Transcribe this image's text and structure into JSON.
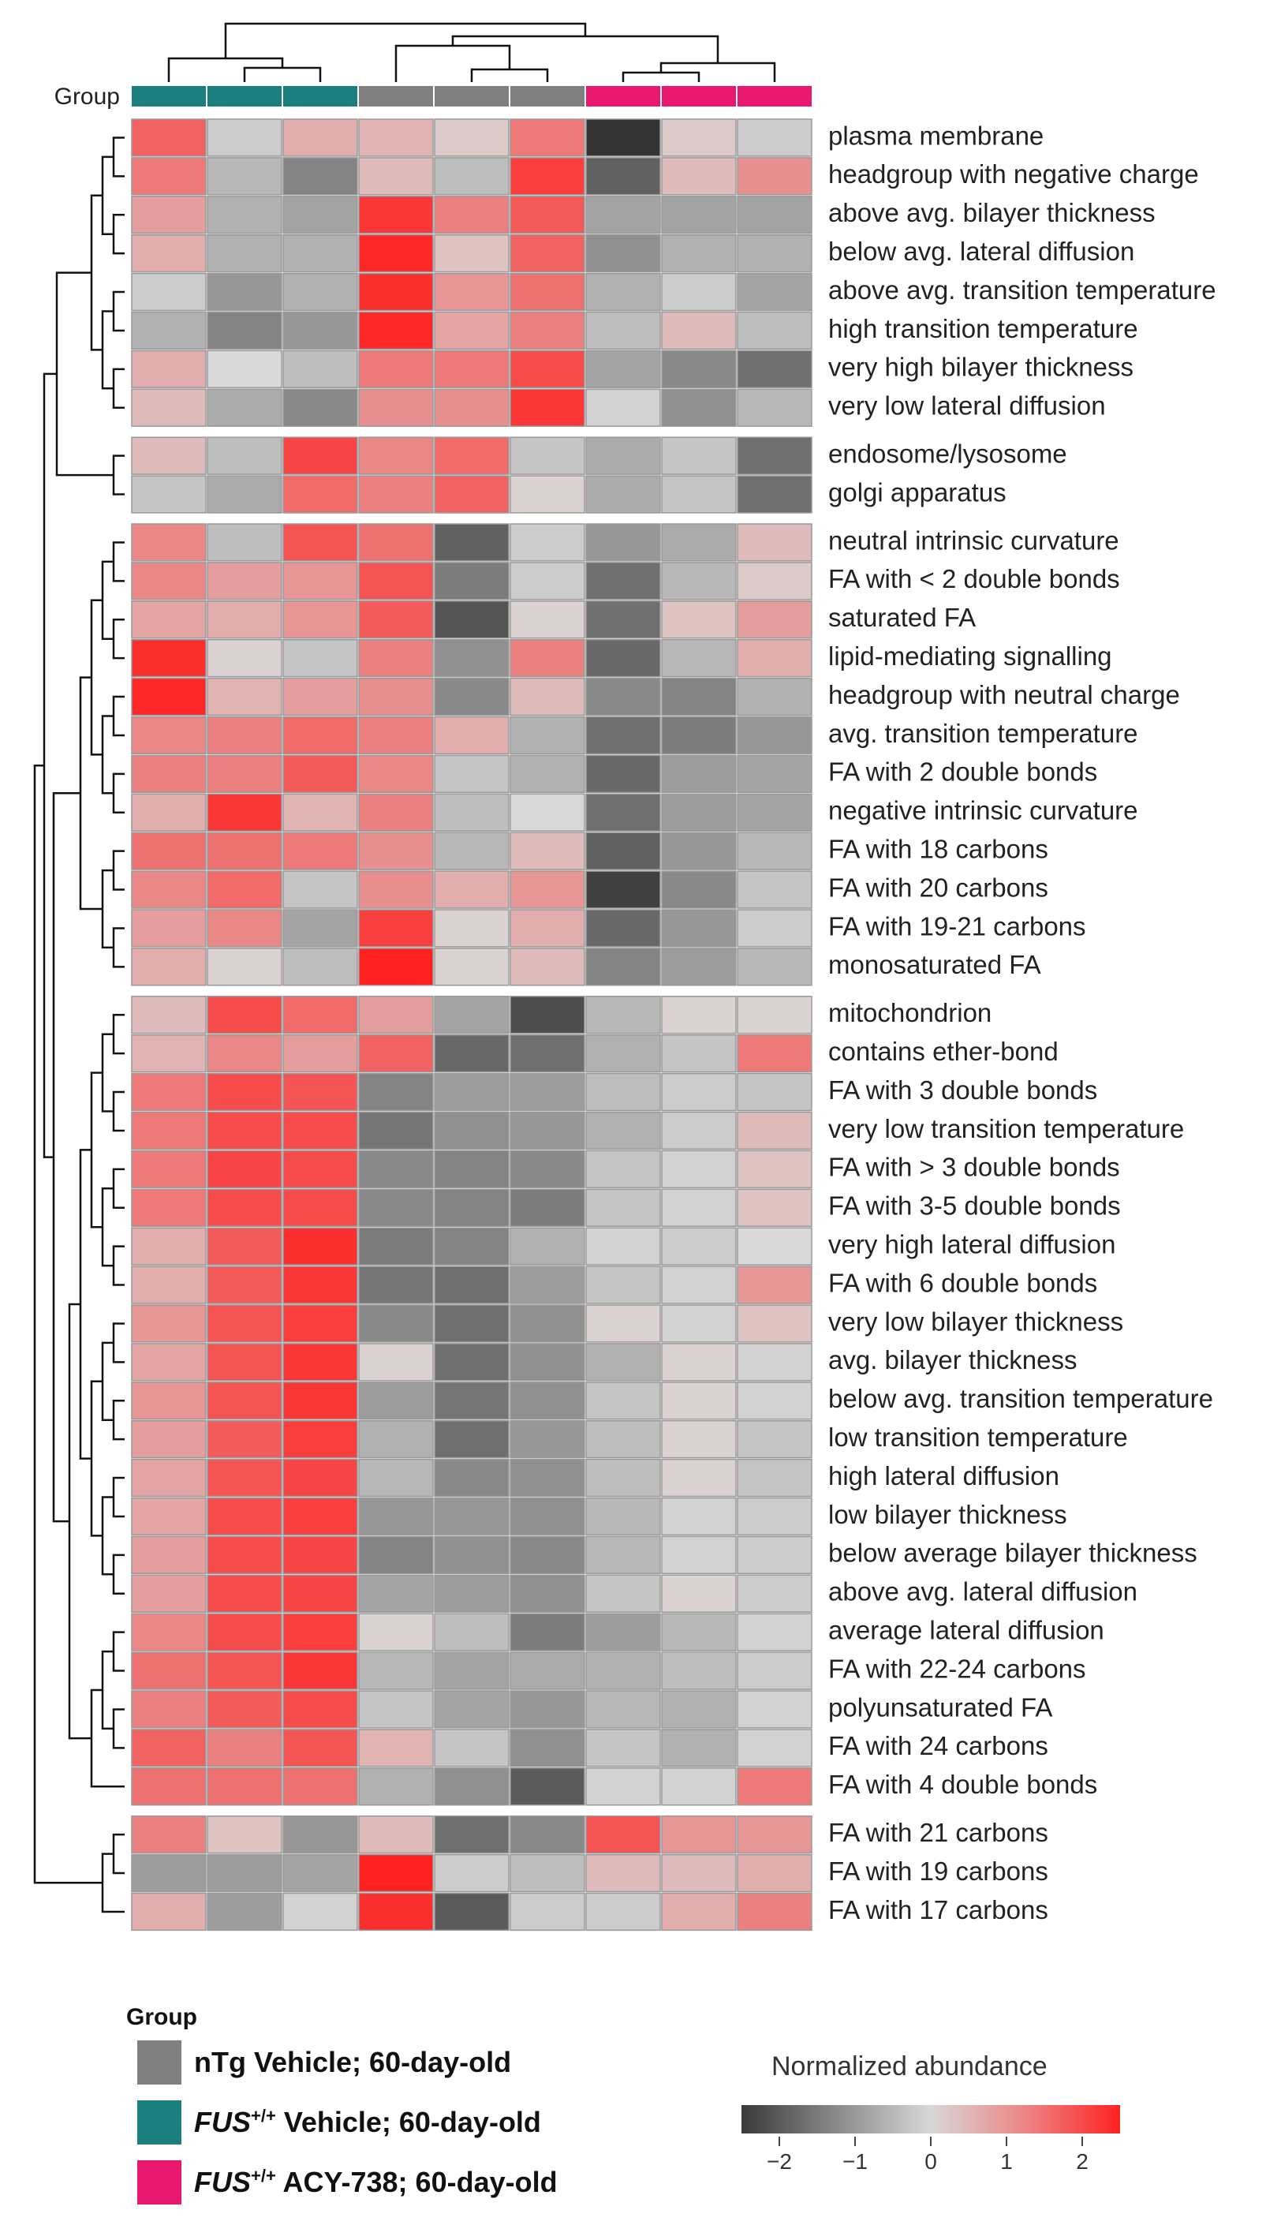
{
  "chart_data": {
    "type": "heatmap",
    "title": "",
    "column_annotation_label": "Group",
    "column_groups": [
      "FUS+/+ Vehicle; 60-day-old",
      "FUS+/+ Vehicle; 60-day-old",
      "FUS+/+ Vehicle; 60-day-old",
      "nTg Vehicle; 60-day-old",
      "nTg Vehicle; 60-day-old",
      "nTg Vehicle; 60-day-old",
      "FUS+/+ ACY-738; 60-day-old",
      "FUS+/+ ACY-738; 60-day-old",
      "FUS+/+ ACY-738; 60-day-old"
    ],
    "row_clusters": [
      8,
      2,
      12,
      21,
      3
    ],
    "rows": [
      "plasma membrane",
      "headgroup with negative charge",
      "above avg. bilayer thickness",
      "below avg. lateral diffusion",
      "above avg. transition temperature",
      "high transition temperature",
      "very high bilayer thickness",
      "very low lateral diffusion",
      "endosome/lysosome",
      "golgi apparatus",
      "neutral intrinsic curvature",
      "FA with < 2 double bonds",
      "saturated FA",
      "lipid-mediating signalling",
      "headgroup with neutral charge",
      "avg. transition temperature",
      "FA with 2 double bonds",
      "negative intrinsic curvature",
      "FA with 18 carbons",
      "FA with 20 carbons",
      "FA with 19-21 carbons",
      "monosaturated FA",
      "mitochondrion",
      "contains ether-bond",
      "FA with 3 double bonds",
      "very low transition temperature",
      "FA with > 3 double bonds",
      "FA with 3-5 double bonds",
      "very high lateral diffusion",
      "FA with 6 double bonds",
      "very low bilayer thickness",
      "avg. bilayer thickness",
      "below avg. transition temperature",
      "low transition temperature",
      "high lateral diffusion",
      "low bilayer thickness",
      "below average bilayer thickness",
      "above avg. lateral diffusion",
      "average lateral diffusion",
      "FA with 22-24 carbons",
      "polyunsaturated FA",
      "FA with 24 carbons",
      "FA with 4 double bonds",
      "FA with 21 carbons",
      "FA with 19 carbons",
      "FA with 17 carbons"
    ],
    "values": [
      [
        1.6,
        -0.2,
        0.6,
        0.5,
        0.2,
        1.3,
        -2.6,
        0.2,
        -0.2
      ],
      [
        1.3,
        -0.5,
        -1.3,
        0.4,
        -0.4,
        2.1,
        -1.8,
        0.4,
        1.0
      ],
      [
        0.8,
        -0.6,
        -0.8,
        2.2,
        1.2,
        1.7,
        -0.8,
        -0.8,
        -0.8
      ],
      [
        0.6,
        -0.6,
        -0.6,
        2.4,
        0.3,
        1.6,
        -1.1,
        -0.6,
        -0.6
      ],
      [
        -0.2,
        -1.0,
        -0.6,
        2.3,
        0.9,
        1.4,
        -0.6,
        -0.2,
        -0.8
      ],
      [
        -0.6,
        -1.3,
        -1.0,
        2.4,
        0.7,
        1.2,
        -0.4,
        0.4,
        -0.4
      ],
      [
        0.6,
        0.0,
        -0.4,
        1.3,
        1.3,
        1.9,
        -0.8,
        -1.2,
        -1.6
      ],
      [
        0.4,
        -0.7,
        -1.2,
        1.0,
        1.0,
        2.2,
        -0.1,
        -1.1,
        -0.5
      ],
      [
        0.4,
        -0.4,
        2.0,
        1.1,
        1.5,
        -0.3,
        -0.7,
        -0.3,
        -1.6
      ],
      [
        -0.3,
        -0.7,
        1.5,
        1.2,
        1.6,
        0.1,
        -0.7,
        -0.3,
        -1.6
      ],
      [
        1.1,
        -0.4,
        1.8,
        1.4,
        -1.8,
        -0.2,
        -1.0,
        -0.7,
        0.4
      ],
      [
        1.1,
        0.8,
        0.9,
        1.8,
        -1.4,
        -0.2,
        -1.6,
        -0.5,
        0.2
      ],
      [
        0.7,
        0.6,
        0.9,
        1.7,
        -2.0,
        0.1,
        -1.6,
        0.3,
        0.8
      ],
      [
        2.3,
        0.1,
        -0.3,
        1.2,
        -1.1,
        1.2,
        -1.7,
        -0.5,
        0.6
      ],
      [
        2.4,
        0.5,
        0.8,
        1.0,
        -1.2,
        0.4,
        -1.2,
        -1.3,
        -0.6
      ],
      [
        1.1,
        1.2,
        1.5,
        1.2,
        0.6,
        -0.6,
        -1.6,
        -1.4,
        -1.0
      ],
      [
        1.2,
        1.2,
        1.7,
        1.1,
        -0.3,
        -0.6,
        -1.7,
        -0.9,
        -0.8
      ],
      [
        0.6,
        2.2,
        0.5,
        1.2,
        -0.4,
        0.0,
        -1.6,
        -0.9,
        -0.8
      ],
      [
        1.4,
        1.4,
        1.3,
        1.0,
        -0.5,
        0.4,
        -1.8,
        -1.0,
        -0.5
      ],
      [
        1.1,
        1.5,
        -0.3,
        1.0,
        0.6,
        0.9,
        -2.3,
        -1.2,
        -0.3
      ],
      [
        0.8,
        1.1,
        -0.8,
        2.1,
        0.1,
        0.6,
        -1.7,
        -1.0,
        -0.2
      ],
      [
        0.6,
        0.1,
        -0.4,
        2.5,
        0.1,
        0.4,
        -1.3,
        -0.9,
        -0.5
      ],
      [
        0.4,
        1.9,
        1.5,
        0.8,
        -0.8,
        -2.1,
        -0.5,
        0.1,
        0.1
      ],
      [
        0.5,
        1.1,
        0.8,
        1.6,
        -1.7,
        -1.6,
        -0.6,
        -0.3,
        1.3
      ],
      [
        1.3,
        1.9,
        1.8,
        -1.3,
        -0.9,
        -0.9,
        -0.4,
        -0.2,
        -0.3
      ],
      [
        1.3,
        1.9,
        1.9,
        -1.5,
        -1.1,
        -1.0,
        -0.6,
        -0.2,
        0.4
      ],
      [
        1.3,
        2.0,
        1.9,
        -1.2,
        -1.3,
        -1.2,
        -0.3,
        -0.1,
        0.3
      ],
      [
        1.3,
        1.9,
        1.9,
        -1.2,
        -1.3,
        -1.4,
        -0.3,
        -0.1,
        0.3
      ],
      [
        0.6,
        1.7,
        2.3,
        -1.4,
        -1.3,
        -0.6,
        -0.1,
        -0.2,
        0.0
      ],
      [
        0.6,
        1.7,
        2.2,
        -1.5,
        -1.6,
        -0.9,
        -0.3,
        -0.1,
        0.9
      ],
      [
        0.9,
        1.8,
        2.1,
        -1.2,
        -1.6,
        -1.1,
        0.1,
        -0.1,
        0.3
      ],
      [
        0.7,
        1.8,
        2.2,
        0.1,
        -1.6,
        -1.1,
        -0.6,
        0.1,
        -0.1
      ],
      [
        0.9,
        1.8,
        2.2,
        -0.9,
        -1.5,
        -1.1,
        -0.3,
        0.1,
        -0.1
      ],
      [
        0.8,
        1.7,
        2.1,
        -0.6,
        -1.6,
        -1.0,
        -0.4,
        0.1,
        -0.3
      ],
      [
        0.7,
        1.8,
        2.0,
        -0.5,
        -1.2,
        -1.1,
        -0.4,
        0.1,
        -0.3
      ],
      [
        0.7,
        1.9,
        2.1,
        -1.0,
        -1.0,
        -1.1,
        -0.5,
        -0.1,
        -0.2
      ],
      [
        0.8,
        1.9,
        2.0,
        -1.3,
        -1.1,
        -1.2,
        -0.5,
        -0.1,
        -0.2
      ],
      [
        0.8,
        1.9,
        2.0,
        -0.8,
        -0.9,
        -1.1,
        -0.3,
        0.1,
        -0.2
      ],
      [
        1.1,
        1.9,
        2.1,
        0.1,
        -0.4,
        -1.4,
        -0.9,
        -0.5,
        -0.1
      ],
      [
        1.4,
        1.8,
        2.2,
        -0.5,
        -0.8,
        -0.7,
        -0.6,
        -0.4,
        -0.2
      ],
      [
        1.2,
        1.7,
        1.9,
        -0.3,
        -0.8,
        -1.0,
        -0.5,
        -0.6,
        -0.1
      ],
      [
        1.6,
        1.2,
        1.8,
        0.5,
        -0.3,
        -1.1,
        -0.3,
        -0.6,
        -0.1
      ],
      [
        1.4,
        1.4,
        1.4,
        -0.6,
        -1.1,
        -1.9,
        -0.1,
        -0.1,
        1.3
      ],
      [
        1.2,
        0.3,
        -1.0,
        0.4,
        -1.6,
        -1.2,
        1.8,
        0.9,
        0.9
      ],
      [
        -0.9,
        -0.9,
        -0.8,
        2.5,
        -0.2,
        -0.4,
        0.4,
        0.4,
        0.6
      ],
      [
        0.6,
        -0.9,
        -0.1,
        2.3,
        -1.9,
        -0.2,
        -0.2,
        0.6,
        1.2
      ]
    ],
    "color_scale": {
      "title": "Normalized abundance",
      "min": -2.5,
      "max": 2.5,
      "ticks": [
        -2,
        -1,
        0,
        1,
        2
      ],
      "tick_labels": [
        "−2",
        "−1",
        "0",
        "1",
        "2"
      ],
      "low_color": "#333333",
      "mid_color": "#d9d9d9",
      "high_color": "#ff2020"
    },
    "legend": {
      "title": "Group",
      "items": [
        {
          "prefix": "",
          "sup": "",
          "text": "nTg Vehicle; 60-day-old",
          "color": "#808080"
        },
        {
          "prefix": "FUS",
          "sup": "+/+",
          "text": " Vehicle; 60-day-old",
          "color": "#1b7f80"
        },
        {
          "prefix": "FUS",
          "sup": "+/+",
          "text": " ACY-738; 60-day-old",
          "color": "#e8186f"
        }
      ]
    }
  }
}
